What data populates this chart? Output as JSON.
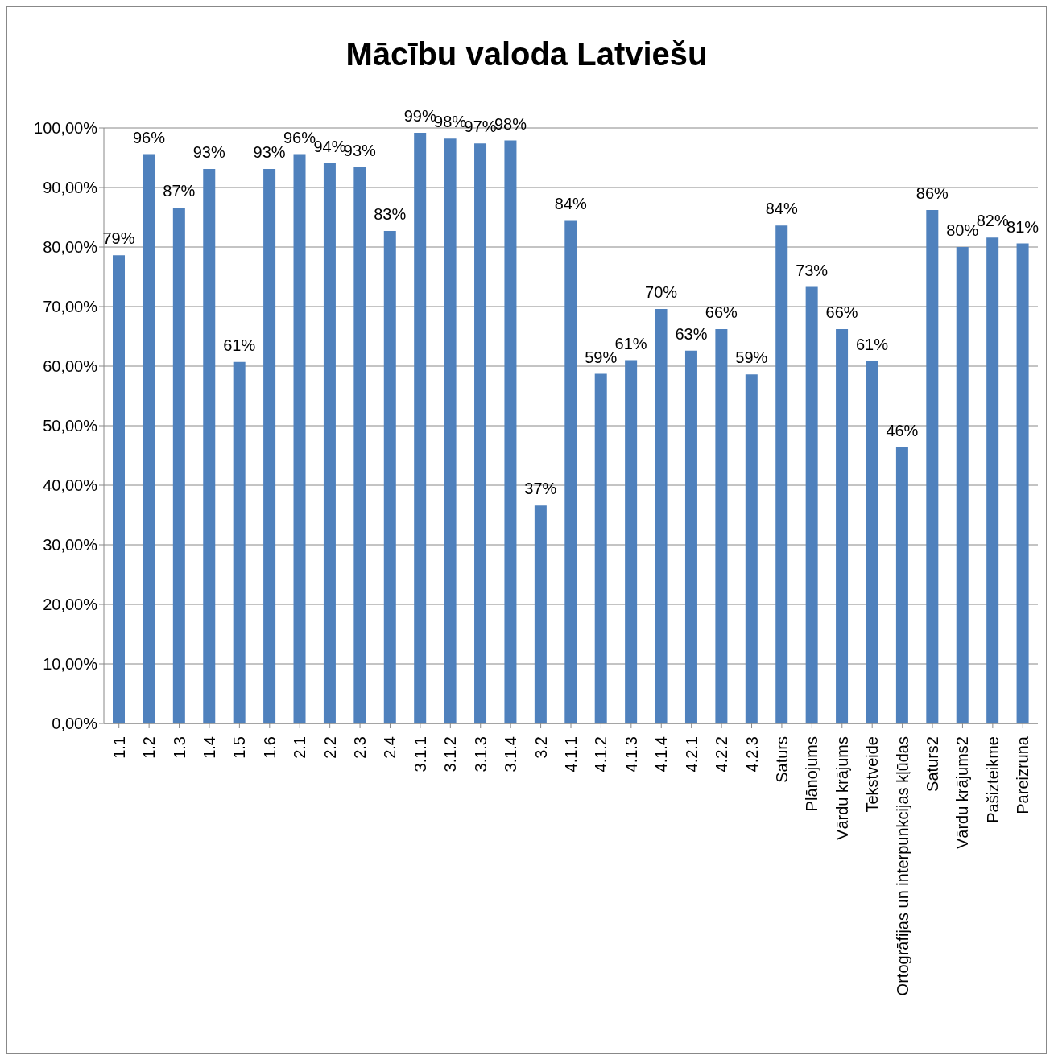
{
  "chart_data": {
    "type": "bar",
    "title": "Mācību valoda Latviešu",
    "categories": [
      "1.1",
      "1.2",
      "1.3",
      "1.4",
      "1.5",
      "1.6",
      "2.1",
      "2.2",
      "2.3",
      "2.4",
      "3.1.1",
      "3.1.2",
      "3.1.3",
      "3.1.4",
      "3.2",
      "4.1.1",
      "4.1.2",
      "4.1.3",
      "4.1.4",
      "4.2.1",
      "4.2.2",
      "4.2.3",
      "Saturs",
      "Plānojums",
      "Vārdu krājums",
      "Tekstveide",
      "Ortogrāfijas un interpunkcijas kļūdas",
      "Saturs2",
      "Vārdu krājums2",
      "Pašizteikme",
      "Pareizruna"
    ],
    "values": [
      78.6,
      95.6,
      86.6,
      93.1,
      60.7,
      93.1,
      95.6,
      94.1,
      93.4,
      82.7,
      99.2,
      98.2,
      97.4,
      97.9,
      36.6,
      84.4,
      58.7,
      61.0,
      69.6,
      62.6,
      66.2,
      58.6,
      83.6,
      73.3,
      66.2,
      60.8,
      46.4,
      86.2,
      80.0,
      81.6,
      80.6
    ],
    "value_labels": [
      "79%",
      "96%",
      "87%",
      "93%",
      "61%",
      "93%",
      "96%",
      "94%",
      "93%",
      "83%",
      "99%",
      "98%",
      "97%",
      "98%",
      "37%",
      "84%",
      "59%",
      "61%",
      "70%",
      "63%",
      "66%",
      "59%",
      "84%",
      "73%",
      "66%",
      "61%",
      "46%",
      "86%",
      "80%",
      "82%",
      "81%"
    ],
    "color": "#4f81bd",
    "ylim": [
      0,
      100
    ],
    "yticks": [
      {
        "value": 0,
        "label": "0,00%"
      },
      {
        "value": 10,
        "label": "10,00%"
      },
      {
        "value": 20,
        "label": "20,00%"
      },
      {
        "value": 30,
        "label": "30,00%"
      },
      {
        "value": 40,
        "label": "40,00%"
      },
      {
        "value": 50,
        "label": "50,00%"
      },
      {
        "value": 60,
        "label": "60,00%"
      },
      {
        "value": 70,
        "label": "70,00%"
      },
      {
        "value": 80,
        "label": "80,00%"
      },
      {
        "value": 90,
        "label": "90,00%"
      },
      {
        "value": 100,
        "label": "100,00%"
      }
    ],
    "grid": "y"
  }
}
